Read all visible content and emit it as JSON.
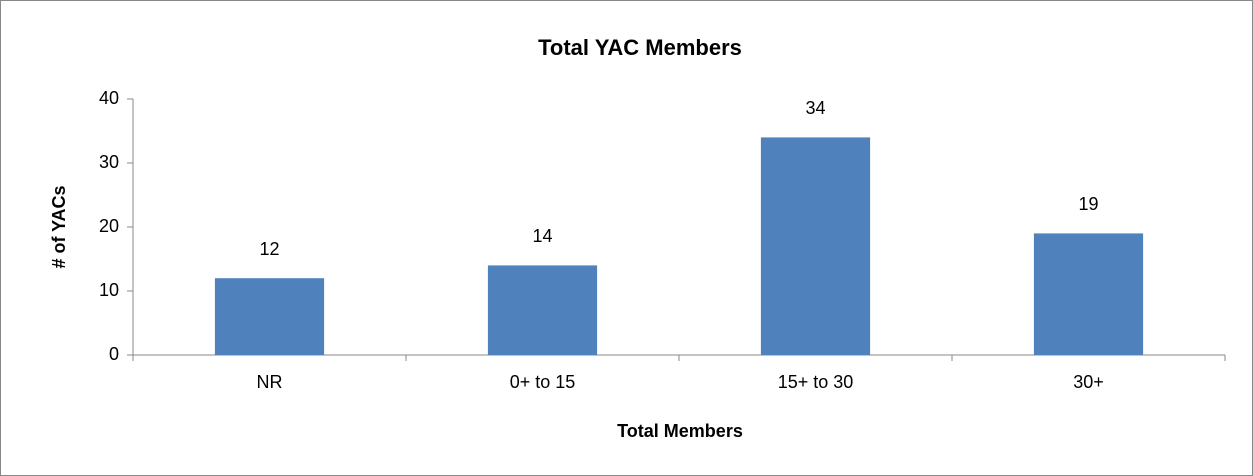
{
  "chart_data": {
    "type": "bar",
    "title": "Total YAC Members",
    "x_label": "Total Members",
    "y_label": "# of YACs",
    "categories": [
      "NR",
      "0+ to 15",
      "15+ to 30",
      "30+"
    ],
    "values": [
      12,
      14,
      34,
      19
    ],
    "color": "#4f81bd",
    "ylim": [
      0,
      40
    ],
    "yticks": [
      0,
      10,
      20,
      30,
      40
    ],
    "grid": false,
    "data_labels": true
  }
}
